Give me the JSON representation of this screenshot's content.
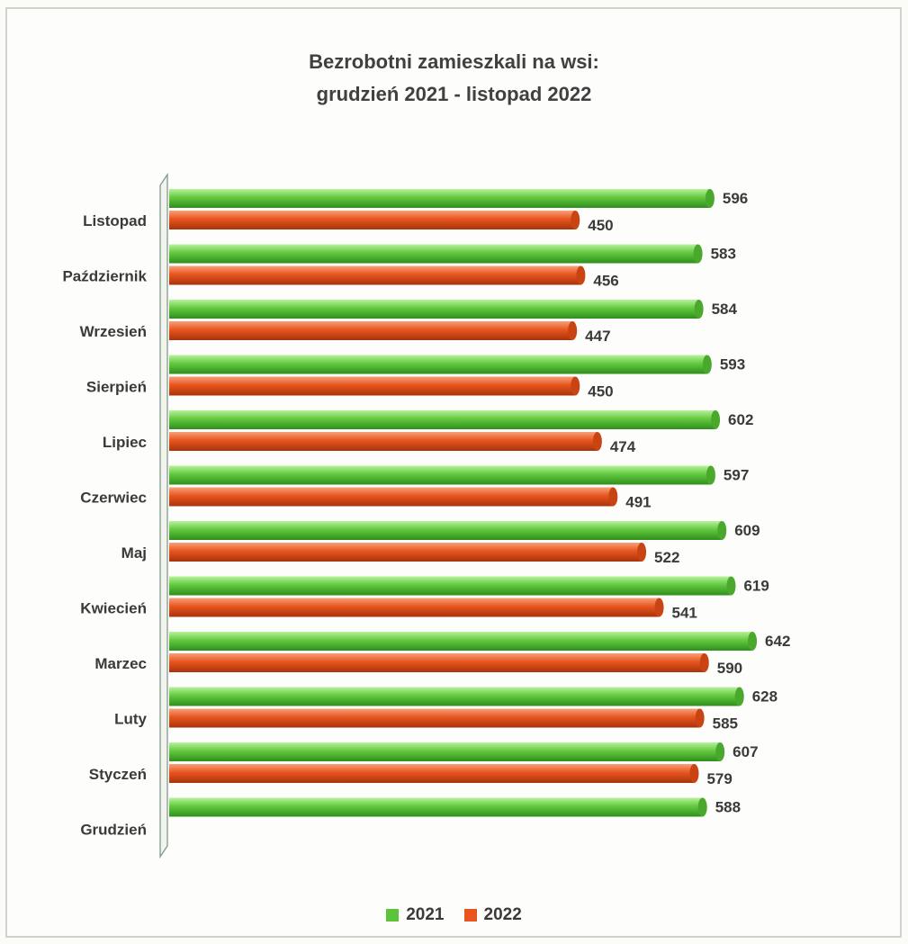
{
  "chart_data": {
    "type": "bar",
    "orientation": "horizontal",
    "title_line1": "Bezrobotni zamieszkali na wsi:",
    "title_line2": "grudzień 2021 - listopad 2022",
    "categories": [
      "Listopad",
      "Październik",
      "Wrzesień",
      "Sierpień",
      "Lipiec",
      "Czerwiec",
      "Maj",
      "Kwiecień",
      "Marzec",
      "Luty",
      "Styczeń",
      "Grudzień"
    ],
    "series": [
      {
        "name": "2021",
        "color": "#5cc43a",
        "values": [
          596,
          583,
          584,
          593,
          602,
          597,
          609,
          619,
          642,
          628,
          607,
          588
        ]
      },
      {
        "name": "2022",
        "color": "#e8551e",
        "values": [
          450,
          456,
          447,
          450,
          474,
          491,
          522,
          541,
          590,
          585,
          579,
          null
        ]
      }
    ],
    "xlim": [
      0,
      650
    ],
    "grid": false,
    "legend_position": "bottom",
    "data_labels": true
  }
}
